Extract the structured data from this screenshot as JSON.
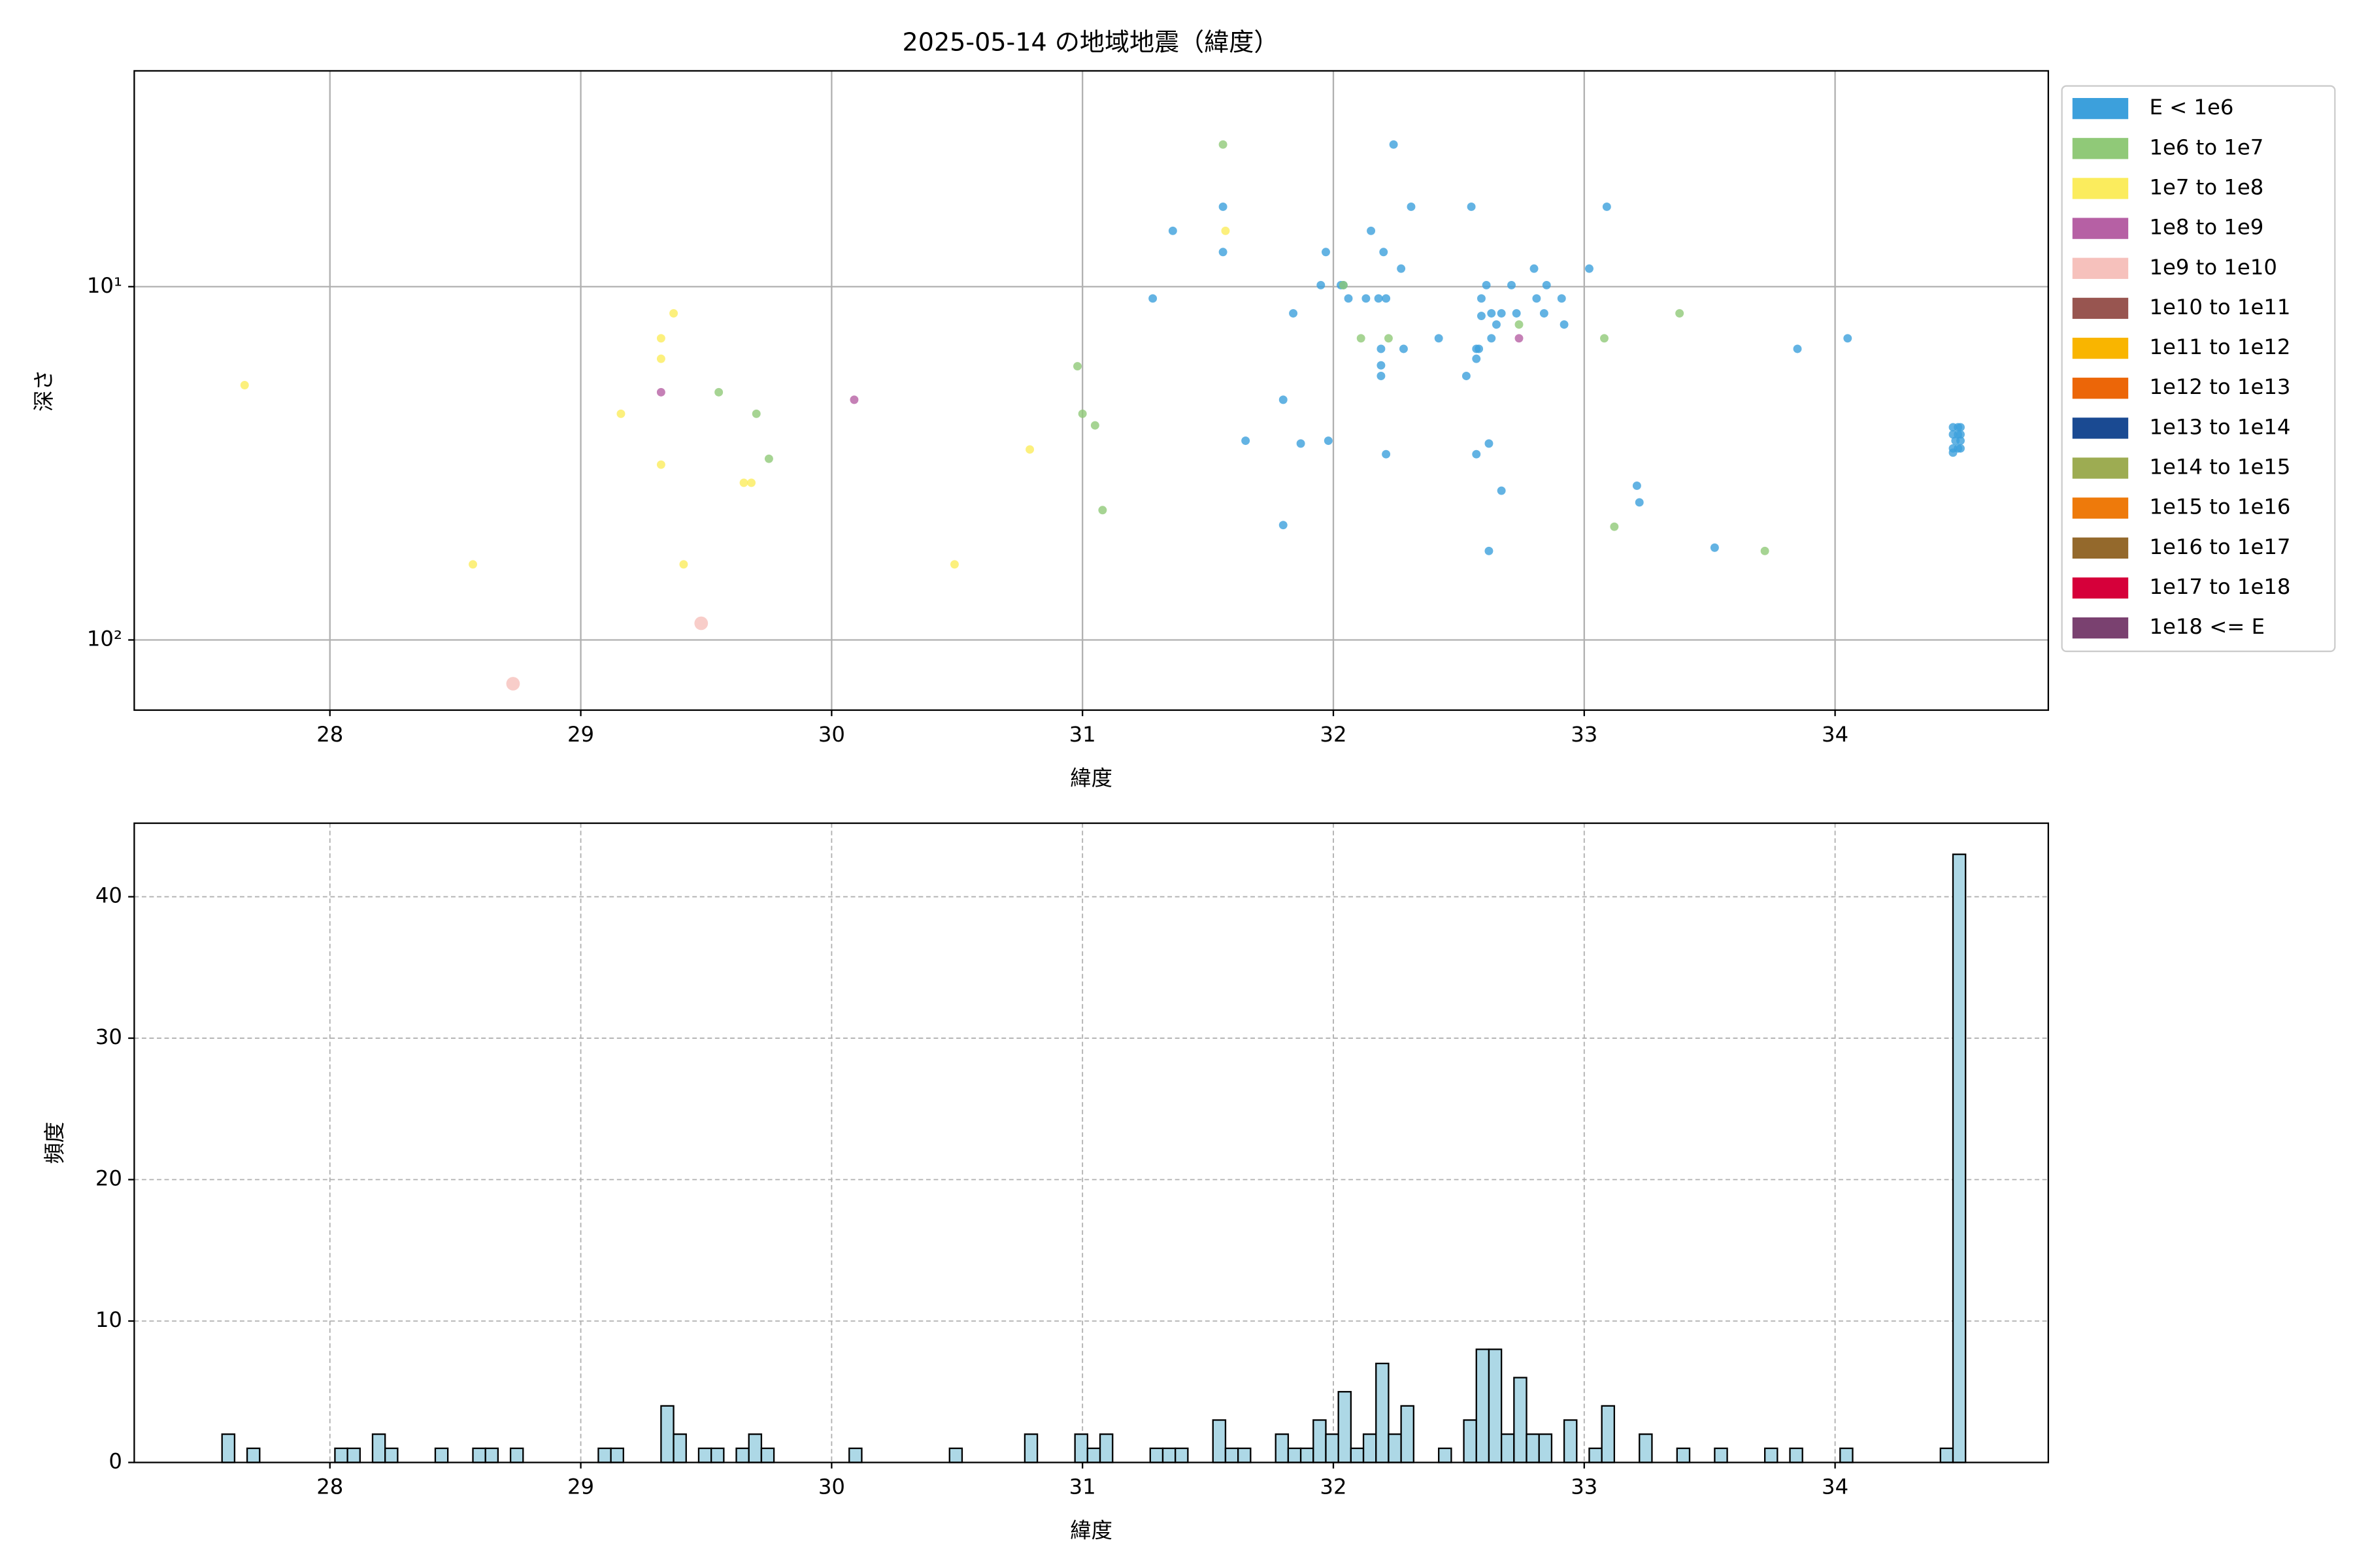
{
  "chart_data": [
    {
      "type": "scatter",
      "title": "2025-05-14 の地域地震（緯度）",
      "xlabel": "緯度",
      "ylabel": "深さ",
      "xlim": [
        27.22,
        34.85
      ],
      "xticks": [
        28,
        29,
        30,
        31,
        32,
        33,
        34
      ],
      "ylim": [
        158,
        2.45
      ],
      "yscale": "log",
      "yticks": [
        {
          "value": 10,
          "label": "10¹"
        },
        {
          "value": 100,
          "label": "10²"
        }
      ],
      "grid": true,
      "legend": "outside right",
      "series": [
        {
          "name": "E < 1e6",
          "color": "#3ca0dc",
          "x": [
            31.28,
            31.36,
            31.56,
            31.56,
            31.8,
            31.84,
            31.87,
            31.65,
            31.8,
            31.95,
            31.97,
            31.98,
            32.03,
            32.04,
            32.06,
            32.13,
            32.15,
            32.18,
            32.19,
            32.19,
            32.19,
            32.2,
            32.21,
            32.21,
            32.24,
            32.27,
            32.28,
            32.31,
            32.42,
            32.53,
            32.55,
            32.57,
            32.57,
            32.57,
            32.59,
            32.58,
            32.59,
            32.61,
            32.62,
            32.62,
            32.63,
            32.63,
            32.65,
            32.67,
            32.67,
            32.71,
            32.73,
            32.8,
            32.81,
            32.84,
            32.85,
            32.91,
            32.92,
            33.02,
            33.09,
            33.21,
            33.22,
            33.52,
            33.85,
            34.05,
            34.47,
            34.49,
            34.5,
            34.47,
            34.49,
            34.5,
            34.48,
            34.5,
            34.47,
            34.49,
            34.5,
            34.47
          ],
          "values": [
            10.8,
            6.95,
            5.94,
            7.98,
            20.9,
            11.9,
            27.8,
            27.3,
            47.3,
            9.9,
            7.98,
            27.3,
            9.9,
            9.9,
            10.8,
            10.8,
            6.95,
            10.8,
            15.0,
            16.7,
            17.9,
            7.98,
            10.8,
            29.8,
            3.96,
            8.89,
            15.0,
            5.94,
            14.0,
            17.9,
            5.94,
            15.0,
            16.0,
            29.8,
            12.1,
            15.0,
            10.8,
            9.9,
            27.8,
            56.0,
            14.0,
            11.9,
            12.8,
            11.9,
            37.8,
            9.9,
            11.9,
            8.89,
            10.8,
            11.9,
            9.9,
            10.8,
            12.8,
            8.89,
            5.94,
            36.6,
            40.8,
            54.8,
            15.0,
            14.0,
            25.0,
            25.0,
            25.0,
            26.2,
            26.2,
            26.2,
            27.3,
            27.3,
            28.7,
            28.7,
            28.7,
            29.5
          ]
        },
        {
          "name": "1e6 to 1e7",
          "color": "#90c978",
          "x": [
            31.56,
            30.98,
            31.0,
            31.05,
            31.08,
            32.11,
            32.22,
            32.74,
            33.08,
            33.12,
            33.38,
            33.72,
            29.55,
            29.7,
            29.75,
            32.04
          ],
          "values": [
            3.96,
            16.8,
            22.9,
            24.7,
            42.9,
            14.0,
            14.0,
            12.8,
            14.0,
            47.8,
            11.9,
            56.0,
            19.9,
            22.9,
            30.7,
            9.9
          ]
        },
        {
          "name": "1e7 to 1e8",
          "color": "#fbec5d",
          "x": [
            27.66,
            28.57,
            29.16,
            29.32,
            29.32,
            29.37,
            29.32,
            29.41,
            29.65,
            29.68,
            30.49,
            30.79,
            31.57
          ],
          "values": [
            19.0,
            61.1,
            22.9,
            16.0,
            14.0,
            11.9,
            31.9,
            61.1,
            35.9,
            35.9,
            61.1,
            28.9,
            6.95
          ]
        },
        {
          "name": "1e8 to 1e9",
          "color": "#b660a4",
          "x": [
            29.32,
            30.09,
            32.74
          ],
          "values": [
            19.9,
            20.9,
            14.0
          ]
        },
        {
          "name": "1e9 to 1e10",
          "color": "#f6c1bc",
          "x": [
            28.73,
            29.48
          ],
          "values": [
            133,
            89.7
          ]
        },
        {
          "name": "1e10 to 1e11",
          "color": "#985550",
          "x": [],
          "values": []
        },
        {
          "name": "1e11 to 1e12",
          "color": "#f9b500",
          "x": [],
          "values": []
        },
        {
          "name": "1e12 to 1e13",
          "color": "#ec6608",
          "x": [],
          "values": []
        },
        {
          "name": "1e13 to 1e14",
          "color": "#1a4a92",
          "x": [],
          "values": []
        },
        {
          "name": "1e14 to 1e15",
          "color": "#9dac52",
          "x": [],
          "values": []
        },
        {
          "name": "1e15 to 1e16",
          "color": "#ee7a0b",
          "x": [],
          "values": []
        },
        {
          "name": "1e16 to 1e17",
          "color": "#94692c",
          "x": [],
          "values": []
        },
        {
          "name": "1e17 to 1e18",
          "color": "#d6003a",
          "x": [],
          "values": []
        },
        {
          "name": "1e18 <= E",
          "color": "#7a4170",
          "x": [],
          "values": []
        }
      ]
    },
    {
      "type": "histogram",
      "xlabel": "緯度",
      "ylabel": "頻度",
      "color": "#add8e6",
      "xlim": [
        27.22,
        34.85
      ],
      "xticks": [
        28,
        29,
        30,
        31,
        32,
        33,
        34
      ],
      "ylim": [
        0,
        45.2
      ],
      "yticks": [
        0,
        10,
        20,
        30,
        40
      ],
      "grid": true,
      "bins": [
        27.57,
        27.62,
        27.67,
        27.72,
        27.77,
        27.82,
        27.87,
        27.92,
        27.97,
        28.02,
        28.07,
        28.12,
        28.17,
        28.22,
        28.27,
        28.32,
        28.37,
        28.42,
        28.47,
        28.52,
        28.57,
        28.62,
        28.67,
        28.72,
        28.77,
        28.82,
        28.87,
        28.92,
        28.97,
        29.02,
        29.07,
        29.12,
        29.17,
        29.22,
        29.27,
        29.32,
        29.37,
        29.42,
        29.47,
        29.52,
        29.57,
        29.62,
        29.67,
        29.72,
        29.77,
        29.82,
        29.87,
        29.92,
        29.97,
        30.02,
        30.07,
        30.12,
        30.17,
        30.22,
        30.27,
        30.32,
        30.37,
        30.42,
        30.47,
        30.52,
        30.57,
        30.62,
        30.67,
        30.72,
        30.77,
        30.82,
        30.87,
        30.92,
        30.97,
        31.02,
        31.07,
        31.12,
        31.17,
        31.22,
        31.27,
        31.32,
        31.37,
        31.42,
        31.47,
        31.52,
        31.57,
        31.62,
        31.67,
        31.72,
        31.77,
        31.82,
        31.87,
        31.92,
        31.97,
        32.02,
        32.07,
        32.12,
        32.17,
        32.22,
        32.27,
        32.32,
        32.37,
        32.42,
        32.47,
        32.52,
        32.57,
        32.62,
        32.67,
        32.72,
        32.77,
        32.82,
        32.87,
        32.92,
        32.97,
        33.02,
        33.07,
        33.12,
        33.17,
        33.22,
        33.27,
        33.32,
        33.37,
        33.42,
        33.47,
        33.52,
        33.57,
        33.62,
        33.67,
        33.72,
        33.77,
        33.82,
        33.87,
        33.92,
        33.97,
        34.02,
        34.07,
        34.12,
        34.17,
        34.22,
        34.27,
        34.32,
        34.37,
        34.42,
        34.47,
        34.52
      ],
      "values": [
        2,
        0,
        1,
        0,
        0,
        0,
        0,
        0,
        0,
        1,
        1,
        0,
        2,
        1,
        0,
        0,
        0,
        1,
        0,
        0,
        1,
        1,
        0,
        1,
        0,
        0,
        0,
        0,
        0,
        0,
        1,
        1,
        0,
        0,
        0,
        4,
        2,
        0,
        1,
        1,
        0,
        1,
        2,
        1,
        0,
        0,
        0,
        0,
        0,
        0,
        1,
        0,
        0,
        0,
        0,
        0,
        0,
        0,
        1,
        0,
        0,
        0,
        0,
        0,
        2,
        0,
        0,
        0,
        2,
        1,
        2,
        0,
        0,
        0,
        1,
        1,
        1,
        0,
        0,
        3,
        1,
        1,
        0,
        0,
        2,
        1,
        1,
        3,
        2,
        5,
        1,
        2,
        7,
        2,
        4,
        0,
        0,
        1,
        0,
        3,
        8,
        8,
        2,
        6,
        2,
        2,
        0,
        3,
        0,
        1,
        4,
        0,
        0,
        2,
        0,
        0,
        1,
        0,
        0,
        1,
        0,
        0,
        0,
        1,
        0,
        1,
        0,
        0,
        0,
        1,
        0,
        0,
        0,
        0,
        0,
        0,
        0,
        1,
        43
      ]
    }
  ]
}
